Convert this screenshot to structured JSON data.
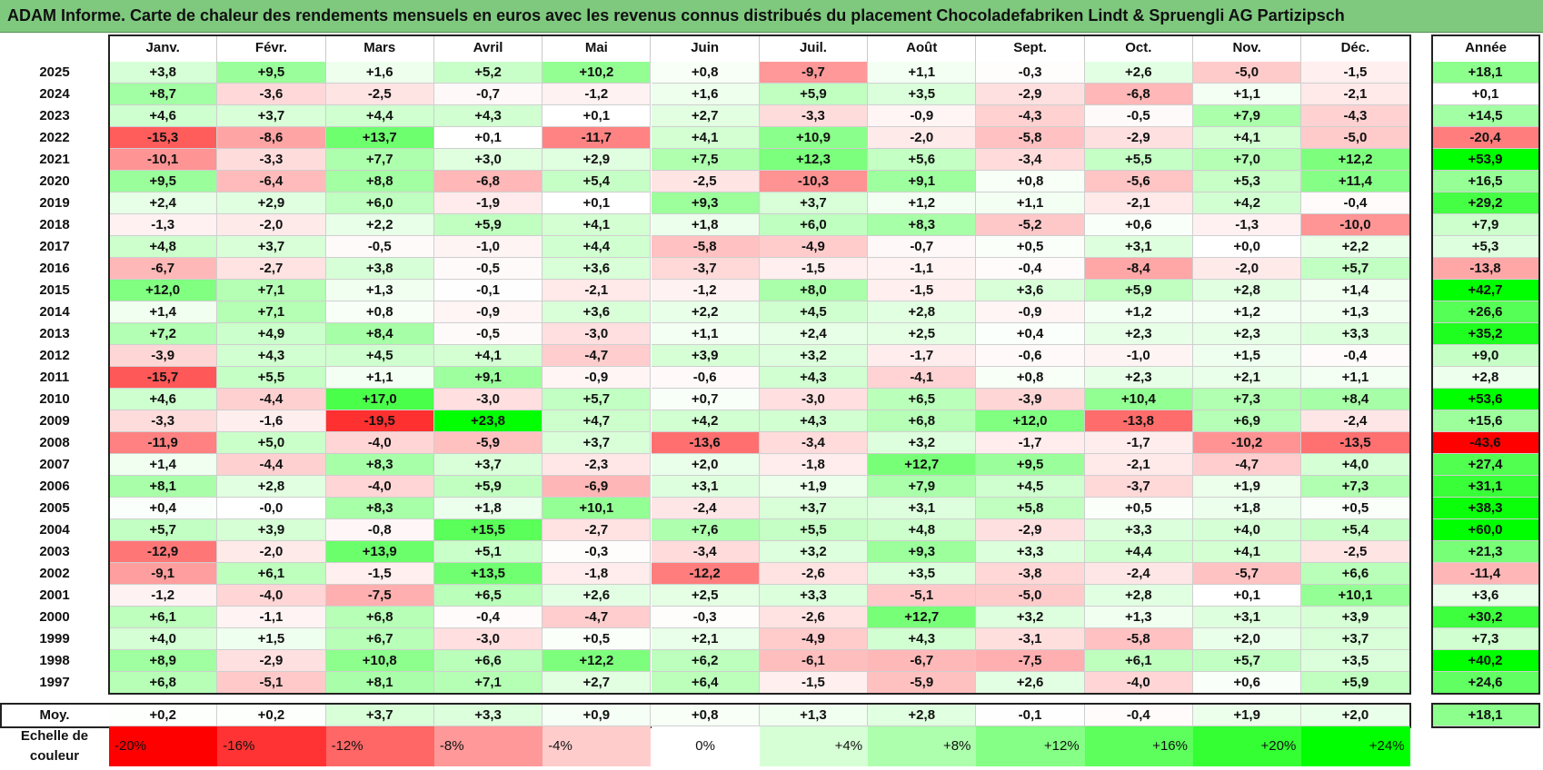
{
  "title": "ADAM Informe. Carte de chaleur des rendements mensuels en euros avec les revenus connus distribués du placement Chocoladefabriken Lindt & Spruengli AG Partizipsch",
  "chart_data": {
    "type": "heatmap",
    "columns": [
      "Janv.",
      "Févr.",
      "Mars",
      "Avril",
      "Mai",
      "Juin",
      "Juil.",
      "Août",
      "Sept.",
      "Oct.",
      "Nov.",
      "Déc."
    ],
    "year_column_label": "Année",
    "rows": [
      {
        "year": "2025",
        "values": [
          "+3,8",
          "+9,5",
          "+1,6",
          "+5,2",
          "+10,2",
          "+0,8",
          "-9,7",
          "+1,1",
          "-0,3",
          "+2,6",
          "-5,0",
          "-1,5"
        ],
        "annual": "+18,1"
      },
      {
        "year": "2024",
        "values": [
          "+8,7",
          "-3,6",
          "-2,5",
          "-0,7",
          "-1,2",
          "+1,6",
          "+5,9",
          "+3,5",
          "-2,9",
          "-6,8",
          "+1,1",
          "-2,1"
        ],
        "annual": "+0,1"
      },
      {
        "year": "2023",
        "values": [
          "+4,6",
          "+3,7",
          "+4,4",
          "+4,3",
          "+0,1",
          "+2,7",
          "-3,3",
          "-0,9",
          "-4,3",
          "-0,5",
          "+7,9",
          "-4,3"
        ],
        "annual": "+14,5"
      },
      {
        "year": "2022",
        "values": [
          "-15,3",
          "-8,6",
          "+13,7",
          "+0,1",
          "-11,7",
          "+4,1",
          "+10,9",
          "-2,0",
          "-5,8",
          "-2,9",
          "+4,1",
          "-5,0"
        ],
        "annual": "-20,4"
      },
      {
        "year": "2021",
        "values": [
          "-10,1",
          "-3,3",
          "+7,7",
          "+3,0",
          "+2,9",
          "+7,5",
          "+12,3",
          "+5,6",
          "-3,4",
          "+5,5",
          "+7,0",
          "+12,2"
        ],
        "annual": "+53,9"
      },
      {
        "year": "2020",
        "values": [
          "+9,5",
          "-6,4",
          "+8,8",
          "-6,8",
          "+5,4",
          "-2,5",
          "-10,3",
          "+9,1",
          "+0,8",
          "-5,6",
          "+5,3",
          "+11,4"
        ],
        "annual": "+16,5"
      },
      {
        "year": "2019",
        "values": [
          "+2,4",
          "+2,9",
          "+6,0",
          "-1,9",
          "+0,1",
          "+9,3",
          "+3,7",
          "+1,2",
          "+1,1",
          "-2,1",
          "+4,2",
          "-0,4"
        ],
        "annual": "+29,2"
      },
      {
        "year": "2018",
        "values": [
          "-1,3",
          "-2,0",
          "+2,2",
          "+5,9",
          "+4,1",
          "+1,8",
          "+6,0",
          "+8,3",
          "-5,2",
          "+0,6",
          "-1,3",
          "-10,0"
        ],
        "annual": "+7,9"
      },
      {
        "year": "2017",
        "values": [
          "+4,8",
          "+3,7",
          "-0,5",
          "-1,0",
          "+4,4",
          "-5,8",
          "-4,9",
          "-0,7",
          "+0,5",
          "+3,1",
          "+0,0",
          "+2,2"
        ],
        "annual": "+5,3"
      },
      {
        "year": "2016",
        "values": [
          "-6,7",
          "-2,7",
          "+3,8",
          "-0,5",
          "+3,6",
          "-3,7",
          "-1,5",
          "-1,1",
          "-0,4",
          "-8,4",
          "-2,0",
          "+5,7"
        ],
        "annual": "-13,8"
      },
      {
        "year": "2015",
        "values": [
          "+12,0",
          "+7,1",
          "+1,3",
          "-0,1",
          "-2,1",
          "-1,2",
          "+8,0",
          "-1,5",
          "+3,6",
          "+5,9",
          "+2,8",
          "+1,4"
        ],
        "annual": "+42,7"
      },
      {
        "year": "2014",
        "values": [
          "+1,4",
          "+7,1",
          "+0,8",
          "-0,9",
          "+3,6",
          "+2,2",
          "+4,5",
          "+2,8",
          "-0,9",
          "+1,2",
          "+1,2",
          "+1,3"
        ],
        "annual": "+26,6"
      },
      {
        "year": "2013",
        "values": [
          "+7,2",
          "+4,9",
          "+8,4",
          "-0,5",
          "-3,0",
          "+1,1",
          "+2,4",
          "+2,5",
          "+0,4",
          "+2,3",
          "+2,3",
          "+3,3"
        ],
        "annual": "+35,2"
      },
      {
        "year": "2012",
        "values": [
          "-3,9",
          "+4,3",
          "+4,5",
          "+4,1",
          "-4,7",
          "+3,9",
          "+3,2",
          "-1,7",
          "-0,6",
          "-1,0",
          "+1,5",
          "-0,4"
        ],
        "annual": "+9,0"
      },
      {
        "year": "2011",
        "values": [
          "-15,7",
          "+5,5",
          "+1,1",
          "+9,1",
          "-0,9",
          "-0,6",
          "+4,3",
          "-4,1",
          "+0,8",
          "+2,3",
          "+2,1",
          "+1,1"
        ],
        "annual": "+2,8"
      },
      {
        "year": "2010",
        "values": [
          "+4,6",
          "-4,4",
          "+17,0",
          "-3,0",
          "+5,7",
          "+0,7",
          "-3,0",
          "+6,5",
          "-3,9",
          "+10,4",
          "+7,3",
          "+8,4"
        ],
        "annual": "+53,6"
      },
      {
        "year": "2009",
        "values": [
          "-3,3",
          "-1,6",
          "-19,5",
          "+23,8",
          "+4,7",
          "+4,2",
          "+4,3",
          "+6,8",
          "+12,0",
          "-13,8",
          "+6,9",
          "-2,4"
        ],
        "annual": "+15,6"
      },
      {
        "year": "2008",
        "values": [
          "-11,9",
          "+5,0",
          "-4,0",
          "-5,9",
          "+3,7",
          "-13,6",
          "-3,4",
          "+3,2",
          "-1,7",
          "-1,7",
          "-10,2",
          "-13,5"
        ],
        "annual": "-43,6"
      },
      {
        "year": "2007",
        "values": [
          "+1,4",
          "-4,4",
          "+8,3",
          "+3,7",
          "-2,3",
          "+2,0",
          "-1,8",
          "+12,7",
          "+9,5",
          "-2,1",
          "-4,7",
          "+4,0"
        ],
        "annual": "+27,4"
      },
      {
        "year": "2006",
        "values": [
          "+8,1",
          "+2,8",
          "-4,0",
          "+5,9",
          "-6,9",
          "+3,1",
          "+1,9",
          "+7,9",
          "+4,5",
          "-3,7",
          "+1,9",
          "+7,3"
        ],
        "annual": "+31,1"
      },
      {
        "year": "2005",
        "values": [
          "+0,4",
          "-0,0",
          "+8,3",
          "+1,8",
          "+10,1",
          "-2,4",
          "+3,7",
          "+3,1",
          "+5,8",
          "+0,5",
          "+1,8",
          "+0,5"
        ],
        "annual": "+38,3"
      },
      {
        "year": "2004",
        "values": [
          "+5,7",
          "+3,9",
          "-0,8",
          "+15,5",
          "-2,7",
          "+7,6",
          "+5,5",
          "+4,8",
          "-2,9",
          "+3,3",
          "+4,0",
          "+5,4"
        ],
        "annual": "+60,0"
      },
      {
        "year": "2003",
        "values": [
          "-12,9",
          "-2,0",
          "+13,9",
          "+5,1",
          "-0,3",
          "-3,4",
          "+3,2",
          "+9,3",
          "+3,3",
          "+4,4",
          "+4,1",
          "-2,5"
        ],
        "annual": "+21,3"
      },
      {
        "year": "2002",
        "values": [
          "-9,1",
          "+6,1",
          "-1,5",
          "+13,5",
          "-1,8",
          "-12,2",
          "-2,6",
          "+3,5",
          "-3,8",
          "-2,4",
          "-5,7",
          "+6,6"
        ],
        "annual": "-11,4"
      },
      {
        "year": "2001",
        "values": [
          "-1,2",
          "-4,0",
          "-7,5",
          "+6,5",
          "+2,6",
          "+2,5",
          "+3,3",
          "-5,1",
          "-5,0",
          "+2,8",
          "+0,1",
          "+10,1"
        ],
        "annual": "+3,6"
      },
      {
        "year": "2000",
        "values": [
          "+6,1",
          "-1,1",
          "+6,8",
          "-0,4",
          "-4,7",
          "-0,3",
          "-2,6",
          "+12,7",
          "+3,2",
          "+1,3",
          "+3,1",
          "+3,9"
        ],
        "annual": "+30,2"
      },
      {
        "year": "1999",
        "values": [
          "+4,0",
          "+1,5",
          "+6,7",
          "-3,0",
          "+0,5",
          "+2,1",
          "-4,9",
          "+4,3",
          "-3,1",
          "-5,8",
          "+2,0",
          "+3,7"
        ],
        "annual": "+7,3"
      },
      {
        "year": "1998",
        "values": [
          "+8,9",
          "-2,9",
          "+10,8",
          "+6,6",
          "+12,2",
          "+6,2",
          "-6,1",
          "-6,7",
          "-7,5",
          "+6,1",
          "+5,7",
          "+3,5"
        ],
        "annual": "+40,2"
      },
      {
        "year": "1997",
        "values": [
          "+6,8",
          "-5,1",
          "+8,1",
          "+7,1",
          "+2,7",
          "+6,4",
          "-1,5",
          "-5,9",
          "+2,6",
          "-4,0",
          "+0,6",
          "+5,9"
        ],
        "annual": "+24,6"
      }
    ],
    "average_row": {
      "label": "Moy.",
      "values": [
        "+0,2",
        "+0,2",
        "+3,7",
        "+3,3",
        "+0,9",
        "+0,8",
        "+1,3",
        "+2,8",
        "-0,1",
        "-0,4",
        "+1,9",
        "+2,0"
      ],
      "annual": "+18,1"
    },
    "legend": {
      "label_line1": "Echelle de",
      "label_line2": "couleur",
      "steps": [
        {
          "label": "-20%",
          "value": -20,
          "color": "#ff0000"
        },
        {
          "label": "-16%",
          "value": -16,
          "color": "#ff3333"
        },
        {
          "label": "-12%",
          "value": -12,
          "color": "#ff6666"
        },
        {
          "label": "-8%",
          "value": -8,
          "color": "#ff9999"
        },
        {
          "label": "-4%",
          "value": -4,
          "color": "#ffcccc"
        },
        {
          "label": "0%",
          "value": 0,
          "color": "#ffffff"
        },
        {
          "label": "+4%",
          "value": 4,
          "color": "#d6ffd6"
        },
        {
          "label": "+8%",
          "value": 8,
          "color": "#adffad"
        },
        {
          "label": "+12%",
          "value": 12,
          "color": "#85ff85"
        },
        {
          "label": "+16%",
          "value": 16,
          "color": "#5cff5c"
        },
        {
          "label": "+20%",
          "value": 20,
          "color": "#33ff33"
        },
        {
          "label": "+24%",
          "value": 24,
          "color": "#00ff00"
        }
      ]
    },
    "colors": {
      "negative_max": "#ff0000",
      "neutral": "#ffffff",
      "positive_max": "#00ff00",
      "title_bar": "#7fc97f"
    }
  }
}
